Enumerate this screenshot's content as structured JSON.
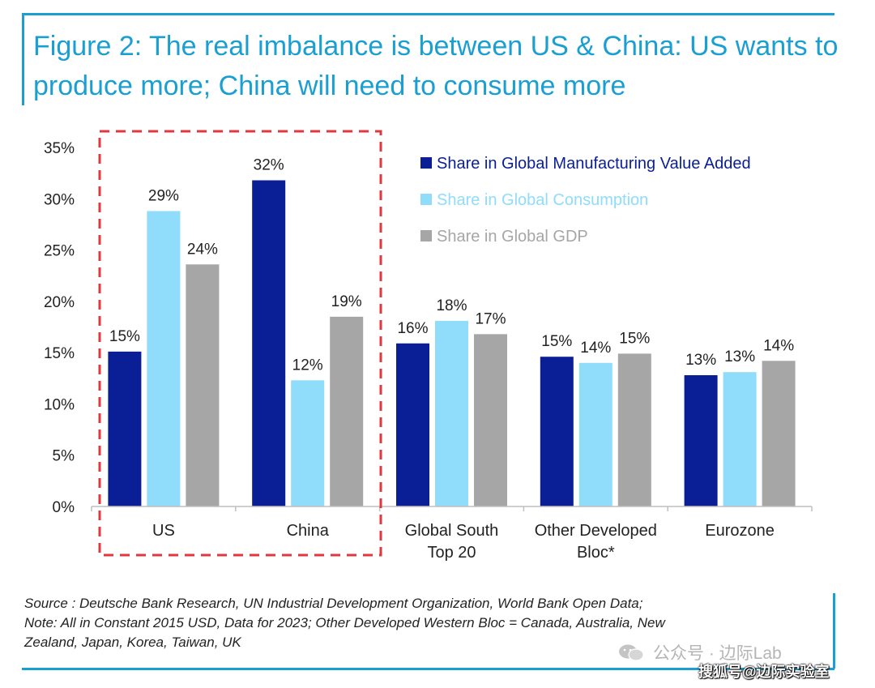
{
  "title": "Figure 2: The real imbalance is between US & China: US wants to produce more; China will need to consume more",
  "colors": {
    "accent": "#1a9fd3",
    "manufacturing": "#0a1e96",
    "consumption": "#8fdcfb",
    "gdp": "#a6a6a6",
    "highlight_box": "#e0383e"
  },
  "chart_data": {
    "type": "bar",
    "categories": [
      "US",
      "China",
      "Global South Top 20",
      "Other Developed Bloc*",
      "Eurozone"
    ],
    "category_label_lines": [
      [
        "US"
      ],
      [
        "China"
      ],
      [
        "Global South",
        "Top 20"
      ],
      [
        "Other Developed",
        "Bloc*"
      ],
      [
        "Eurozone"
      ]
    ],
    "series": [
      {
        "name": "Share in Global Manufacturing Value Added",
        "values": [
          15.1,
          31.8,
          15.9,
          14.6,
          12.8
        ],
        "labels": [
          "15%",
          "32%",
          "16%",
          "15%",
          "13%"
        ]
      },
      {
        "name": "Share in Global Consumption",
        "values": [
          28.8,
          12.3,
          18.1,
          14.0,
          13.1
        ],
        "labels": [
          "29%",
          "12%",
          "18%",
          "14%",
          "13%"
        ]
      },
      {
        "name": "Share in Global GDP",
        "values": [
          23.6,
          18.5,
          16.8,
          14.9,
          14.2
        ],
        "labels": [
          "24%",
          "19%",
          "17%",
          "15%",
          "14%"
        ]
      }
    ],
    "ylim": [
      0,
      35
    ],
    "yticks": [
      0,
      5,
      10,
      15,
      20,
      25,
      30,
      35
    ],
    "ytick_labels": [
      "0%",
      "5%",
      "10%",
      "15%",
      "20%",
      "25%",
      "30%",
      "35%"
    ],
    "xlabel": "",
    "ylabel": "",
    "legend_position": "top-right",
    "highlighted_categories": [
      "US",
      "China"
    ],
    "grid": false
  },
  "footnote": {
    "line1": "Source : Deutsche Bank Research, UN Industrial Development Organization, World Bank Open Data;",
    "line2": "Note: All in Constant 2015 USD, Data for 2023; Other Developed Western Bloc = Canada, Australia, New",
    "line3": "Zealand, Japan, Korea, Taiwan, UK"
  },
  "watermark": {
    "top": "公众号 · 边际Lab",
    "bottom": "搜狐号@边际实验室",
    "icon": "wechat-icon"
  }
}
